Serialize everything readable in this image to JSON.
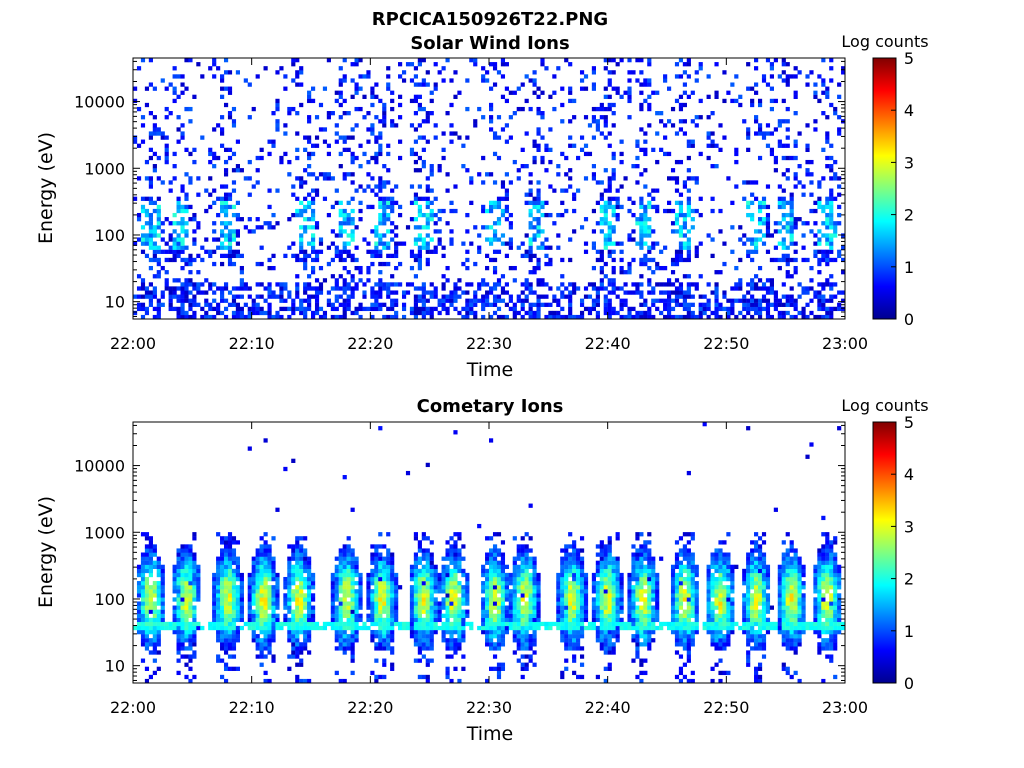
{
  "figure_title": "RPCICA150926T22.PNG",
  "chart_data": [
    {
      "type": "heatmap",
      "title": "Solar Wind Ions",
      "xlabel": "Time",
      "ylabel": "Energy (eV)",
      "x_ticks": [
        "22:00",
        "22:10",
        "22:20",
        "22:30",
        "22:40",
        "22:50",
        "23:00"
      ],
      "x_range": [
        "22:00",
        "23:00"
      ],
      "y_scale": "log",
      "y_ticks": [
        "10",
        "100",
        "1000",
        "10000"
      ],
      "y_range": [
        5.5,
        45000
      ],
      "colorbar_label": "Log counts",
      "colorbar_ticks": [
        "0",
        "1",
        "2",
        "3",
        "4",
        "5"
      ],
      "color_range": [
        0,
        5
      ],
      "colormap": "jet",
      "bursts_minutes": [
        1.5,
        4,
        8,
        14.5,
        18,
        21,
        24.5,
        30.5,
        34,
        40,
        43,
        46.5,
        52.5,
        55,
        58.5
      ],
      "background": "sparse low counts (0-1) across all energies; weak enhancements (1-2) at 30-300 eV during bursts"
    },
    {
      "type": "heatmap",
      "title": "Cometary Ions",
      "xlabel": "Time",
      "ylabel": "Energy (eV)",
      "x_ticks": [
        "22:00",
        "22:10",
        "22:20",
        "22:30",
        "22:40",
        "22:50",
        "23:00"
      ],
      "x_range": [
        "22:00",
        "23:00"
      ],
      "y_scale": "log",
      "y_ticks": [
        "10",
        "100",
        "1000",
        "10000"
      ],
      "y_range": [
        5.5,
        45000
      ],
      "colorbar_label": "Log counts",
      "colorbar_ticks": [
        "0",
        "1",
        "2",
        "3",
        "4",
        "5"
      ],
      "color_range": [
        0,
        5
      ],
      "colormap": "jet",
      "bursts_minutes": [
        1.5,
        4.5,
        8,
        11,
        14,
        18,
        21,
        24.5,
        27,
        30.5,
        33,
        37,
        40,
        43,
        46.5,
        49.5,
        52.5,
        55.5,
        58.5
      ],
      "burst_peak_energy_eV": 100,
      "burst_peak_log_counts": 3,
      "band_energy_eV": 40,
      "band_log_counts": 2
    }
  ]
}
